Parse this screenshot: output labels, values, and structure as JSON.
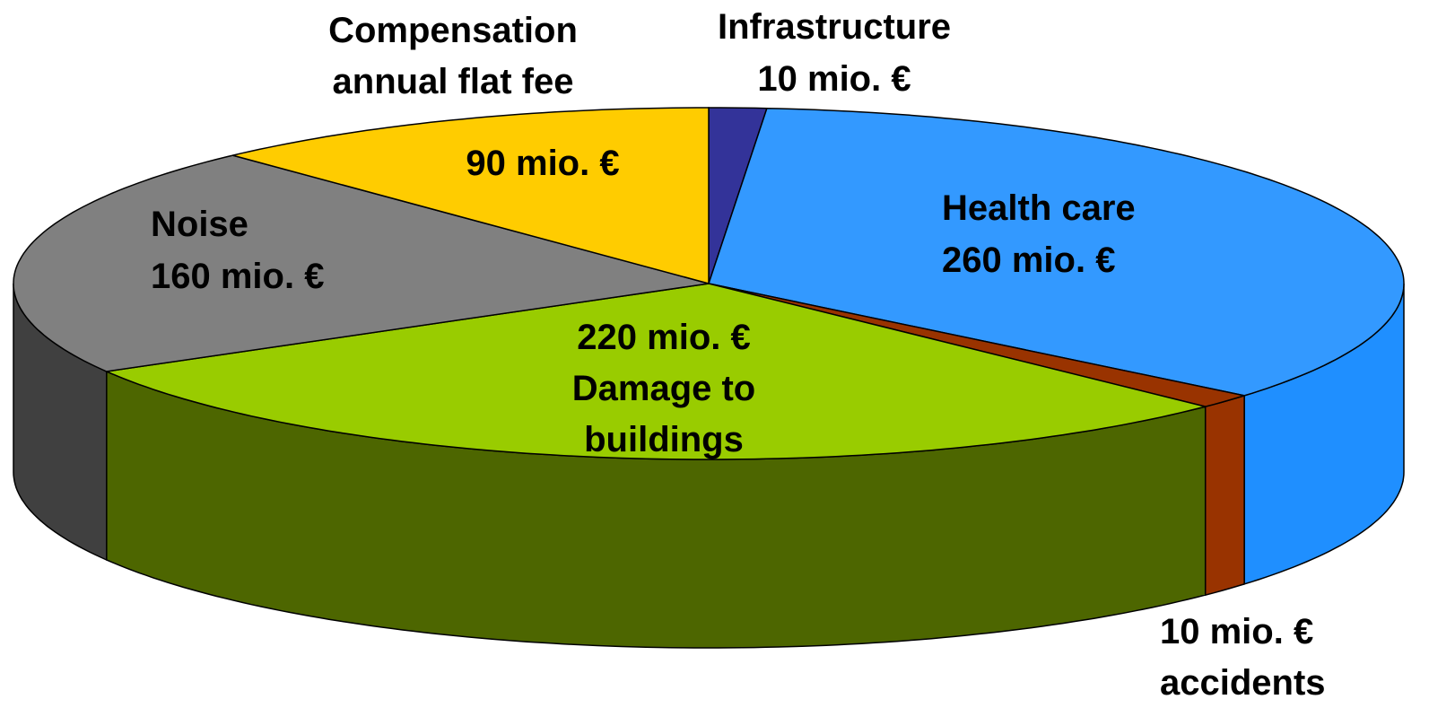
{
  "chart_data": {
    "type": "pie3d",
    "categories": [
      "Infrastructure",
      "Health care",
      "accidents",
      "Damage to buildings",
      "Noise",
      "Compensation annual flat fee"
    ],
    "values": [
      10,
      260,
      10,
      220,
      160,
      90
    ],
    "value_labels": [
      "10 mio. €",
      "260 mio. €",
      "10 mio. €",
      "220 mio. €",
      "160 mio. €",
      "90 mio. €"
    ],
    "colors": [
      "#333399",
      "#3399ff",
      "#993300",
      "#99cc00",
      "#808080",
      "#ffcc00"
    ],
    "side_colors": [
      "#222266",
      "#1f8fff",
      "#993300",
      "#4d6600",
      "#404040",
      "#b38f00"
    ]
  }
}
